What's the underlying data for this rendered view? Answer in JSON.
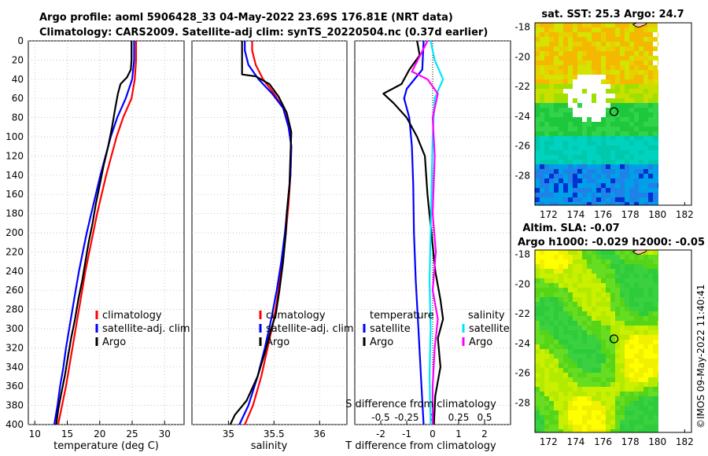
{
  "title_line1": "Argo profile: aoml 5906428_33 04-May-2022 23.69S 176.81E (NRT data)",
  "title_line2": "Climatology: CARS2009. Satellite-adj clim: synTS_20220504.nc (0.37d earlier)",
  "timestamp": "©IMOS 09-May-2022 11:40:41",
  "colors": {
    "climatology": "#ff0000",
    "satellite": "#0000ff",
    "argo": "#000000",
    "sat_salinity": "#00e5ff",
    "argo_salinity": "#ff00ff"
  },
  "chart_data": [
    {
      "type": "line",
      "id": "temp",
      "xlabel": "temperature (deg C)",
      "xlim": [
        9,
        33
      ],
      "ylim": [
        0,
        400
      ],
      "xticks": [
        "10",
        "15",
        "20",
        "25",
        "30"
      ],
      "yticks": [
        "0",
        "20",
        "40",
        "60",
        "80",
        "100",
        "120",
        "140",
        "160",
        "180",
        "200",
        "220",
        "240",
        "260",
        "280",
        "300",
        "320",
        "340",
        "360",
        "380",
        "400"
      ],
      "legend": [
        "climatology",
        "satellite-adj. clim",
        "Argo"
      ],
      "series": [
        {
          "name": "climatology",
          "color": "#ff0000",
          "points": [
            [
              25.6,
              0
            ],
            [
              25.6,
              20
            ],
            [
              25.4,
              40
            ],
            [
              24.9,
              60
            ],
            [
              23.6,
              80
            ],
            [
              22.6,
              100
            ],
            [
              21.8,
              120
            ],
            [
              21.0,
              140
            ],
            [
              20.3,
              160
            ],
            [
              19.6,
              180
            ],
            [
              19.0,
              200
            ],
            [
              18.4,
              220
            ],
            [
              17.8,
              240
            ],
            [
              17.3,
              260
            ],
            [
              16.8,
              280
            ],
            [
              16.3,
              300
            ],
            [
              15.8,
              320
            ],
            [
              15.3,
              340
            ],
            [
              14.8,
              360
            ],
            [
              14.2,
              380
            ],
            [
              13.6,
              400
            ]
          ]
        },
        {
          "name": "satellite-adj. clim",
          "color": "#0000ff",
          "points": [
            [
              25.3,
              0
            ],
            [
              25.3,
              20
            ],
            [
              25.0,
              40
            ],
            [
              24.0,
              60
            ],
            [
              22.7,
              80
            ],
            [
              21.7,
              100
            ],
            [
              20.9,
              120
            ],
            [
              20.1,
              140
            ],
            [
              19.4,
              160
            ],
            [
              18.7,
              180
            ],
            [
              18.0,
              200
            ],
            [
              17.4,
              220
            ],
            [
              16.8,
              240
            ],
            [
              16.3,
              260
            ],
            [
              15.8,
              280
            ],
            [
              15.3,
              300
            ],
            [
              14.8,
              320
            ],
            [
              14.4,
              340
            ],
            [
              13.9,
              360
            ],
            [
              13.5,
              380
            ],
            [
              13.0,
              400
            ]
          ]
        },
        {
          "name": "Argo",
          "color": "#000000",
          "points": [
            [
              24.9,
              0
            ],
            [
              24.9,
              20
            ],
            [
              24.8,
              30
            ],
            [
              24.2,
              38
            ],
            [
              23.2,
              45
            ],
            [
              22.8,
              55
            ],
            [
              22.4,
              70
            ],
            [
              21.9,
              90
            ],
            [
              21.3,
              110
            ],
            [
              20.6,
              130
            ],
            [
              20.0,
              150
            ],
            [
              19.4,
              170
            ],
            [
              18.9,
              190
            ],
            [
              18.3,
              210
            ],
            [
              17.8,
              230
            ],
            [
              17.3,
              250
            ],
            [
              16.7,
              270
            ],
            [
              16.2,
              290
            ],
            [
              15.6,
              310
            ],
            [
              15.1,
              330
            ],
            [
              14.6,
              350
            ],
            [
              14.0,
              370
            ],
            [
              13.6,
              385
            ],
            [
              13.3,
              400
            ]
          ]
        }
      ]
    },
    {
      "type": "line",
      "id": "sal",
      "xlabel": "salinity",
      "xlim": [
        34.6,
        36.3
      ],
      "ylim": [
        0,
        400
      ],
      "xticks": [
        "35",
        "35.5",
        "36"
      ],
      "legend": [
        "climatology",
        "satellite-adj. clim",
        "Argo"
      ],
      "series": [
        {
          "name": "climatology",
          "color": "#ff0000",
          "points": [
            [
              35.26,
              0
            ],
            [
              35.26,
              10
            ],
            [
              35.3,
              25
            ],
            [
              35.38,
              40
            ],
            [
              35.5,
              55
            ],
            [
              35.6,
              70
            ],
            [
              35.67,
              90
            ],
            [
              35.69,
              110
            ],
            [
              35.68,
              140
            ],
            [
              35.66,
              170
            ],
            [
              35.63,
              200
            ],
            [
              35.59,
              230
            ],
            [
              35.55,
              260
            ],
            [
              35.5,
              290
            ],
            [
              35.43,
              320
            ],
            [
              35.36,
              350
            ],
            [
              35.27,
              380
            ],
            [
              35.18,
              400
            ]
          ]
        },
        {
          "name": "satellite-adj. clim",
          "color": "#0000ff",
          "points": [
            [
              35.18,
              0
            ],
            [
              35.18,
              10
            ],
            [
              35.22,
              25
            ],
            [
              35.33,
              40
            ],
            [
              35.48,
              55
            ],
            [
              35.6,
              70
            ],
            [
              35.66,
              90
            ],
            [
              35.69,
              110
            ],
            [
              35.68,
              140
            ],
            [
              35.65,
              170
            ],
            [
              35.62,
              200
            ],
            [
              35.58,
              230
            ],
            [
              35.53,
              260
            ],
            [
              35.47,
              290
            ],
            [
              35.4,
              320
            ],
            [
              35.32,
              350
            ],
            [
              35.22,
              380
            ],
            [
              35.12,
              400
            ]
          ]
        },
        {
          "name": "Argo",
          "color": "#000000",
          "points": [
            [
              35.15,
              0
            ],
            [
              35.15,
              35
            ],
            [
              35.3,
              37
            ],
            [
              35.45,
              45
            ],
            [
              35.55,
              58
            ],
            [
              35.64,
              75
            ],
            [
              35.69,
              95
            ],
            [
              35.68,
              120
            ],
            [
              35.67,
              150
            ],
            [
              35.64,
              180
            ],
            [
              35.63,
              200
            ],
            [
              35.6,
              230
            ],
            [
              35.56,
              260
            ],
            [
              35.52,
              285
            ],
            [
              35.47,
              300
            ],
            [
              35.4,
              325
            ],
            [
              35.32,
              350
            ],
            [
              35.2,
              375
            ],
            [
              35.07,
              390
            ],
            [
              35.02,
              400
            ]
          ]
        }
      ]
    },
    {
      "type": "line",
      "id": "diff",
      "xlabel": "T difference from climatology",
      "xlabel2": "S difference from climatology",
      "xlim": [
        -3,
        3
      ],
      "x2lim": [
        -0.75,
        0.75
      ],
      "ylim": [
        0,
        400
      ],
      "xticks": [
        "-2",
        "-1",
        "0",
        "1",
        "2"
      ],
      "x2ticks": [
        "-0.5",
        "-0.25",
        "0",
        "0.25",
        "0.5"
      ],
      "legend_left_title": "temperature",
      "legend_right_title": "salinity",
      "legend_left": [
        "satellite",
        "Argo"
      ],
      "legend_right": [
        "satellite",
        "Argo"
      ],
      "series": [
        {
          "name": "T satellite",
          "color": "#0000ff",
          "axis": "T",
          "points": [
            [
              -0.35,
              0
            ],
            [
              -0.4,
              30
            ],
            [
              -1.0,
              50
            ],
            [
              -1.1,
              60
            ],
            [
              -0.9,
              80
            ],
            [
              -0.8,
              110
            ],
            [
              -0.75,
              150
            ],
            [
              -0.72,
              200
            ],
            [
              -0.65,
              250
            ],
            [
              -0.55,
              300
            ],
            [
              -0.45,
              350
            ],
            [
              -0.35,
              400
            ]
          ]
        },
        {
          "name": "T Argo",
          "color": "#000000",
          "axis": "T",
          "points": [
            [
              -0.6,
              0
            ],
            [
              -0.5,
              15
            ],
            [
              -0.9,
              30
            ],
            [
              -1.2,
              45
            ],
            [
              -1.9,
              55
            ],
            [
              -1.5,
              65
            ],
            [
              -1.0,
              80
            ],
            [
              -0.6,
              100
            ],
            [
              -0.3,
              120
            ],
            [
              -0.2,
              160
            ],
            [
              -0.05,
              200
            ],
            [
              0.1,
              240
            ],
            [
              0.3,
              270
            ],
            [
              0.4,
              290
            ],
            [
              0.2,
              310
            ],
            [
              0.3,
              340
            ],
            [
              0.1,
              370
            ],
            [
              0.05,
              400
            ]
          ]
        },
        {
          "name": "S satellite",
          "color": "#00e5ff",
          "axis": "S",
          "points": [
            [
              -0.02,
              0
            ],
            [
              0.02,
              20
            ],
            [
              0.1,
              40
            ],
            [
              0.02,
              60
            ],
            [
              0.0,
              100
            ],
            [
              -0.01,
              150
            ],
            [
              -0.02,
              200
            ],
            [
              -0.03,
              250
            ],
            [
              -0.02,
              300
            ],
            [
              -0.03,
              350
            ],
            [
              -0.02,
              400
            ]
          ]
        },
        {
          "name": "S Argo",
          "color": "#ff00ff",
          "axis": "S",
          "points": [
            [
              -0.05,
              0
            ],
            [
              -0.12,
              15
            ],
            [
              -0.2,
              32
            ],
            [
              -0.05,
              40
            ],
            [
              0.05,
              55
            ],
            [
              0.0,
              80
            ],
            [
              0.02,
              120
            ],
            [
              0.0,
              180
            ],
            [
              0.03,
              220
            ],
            [
              0.0,
              260
            ],
            [
              0.05,
              290
            ],
            [
              0.02,
              320
            ],
            [
              0.0,
              360
            ],
            [
              0.0,
              400
            ]
          ]
        }
      ]
    },
    {
      "type": "heatmap",
      "id": "sst",
      "title": "sat. SST: 25.3 Argo: 24.7",
      "xticks": [
        "172",
        "174",
        "176",
        "178",
        "180",
        "182"
      ],
      "yticks": [
        "-18",
        "-20",
        "-22",
        "-24",
        "-26",
        "-28"
      ],
      "xlim": [
        171,
        182.5
      ],
      "ylim": [
        -30,
        -17.7
      ]
    },
    {
      "type": "heatmap",
      "id": "sla",
      "title": "Altim. SLA: -0.07",
      "title2": "Argo h1000: -0.029 h2000: -0.05",
      "xticks": [
        "172",
        "174",
        "176",
        "178",
        "180",
        "182"
      ],
      "yticks": [
        "-18",
        "-20",
        "-22",
        "-24",
        "-26",
        "-28"
      ],
      "xlim": [
        171,
        182.5
      ],
      "ylim": [
        -30,
        -17.7
      ]
    }
  ]
}
